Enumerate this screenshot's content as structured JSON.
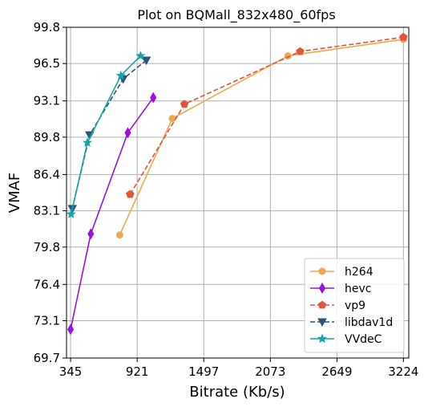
{
  "chart_data": {
    "type": "line",
    "title": "Plot on BQMall_832x480_60fps",
    "xlabel": "Bitrate (Kb/s)",
    "ylabel": "VMAF",
    "xlim": [
      310,
      3270
    ],
    "ylim": [
      69.7,
      99.8
    ],
    "xticks": [
      345,
      921,
      1497,
      2073,
      2649,
      3224
    ],
    "yticks": [
      69.7,
      73.1,
      76.4,
      79.8,
      83.1,
      86.4,
      89.8,
      93.1,
      96.5,
      99.8
    ],
    "xtick_labels": [
      "345",
      "921",
      "1497",
      "2073",
      "2649",
      "3224"
    ],
    "ytick_labels": [
      "69.7",
      "73.1",
      "76.4",
      "79.8",
      "83.1",
      "86.4",
      "89.8",
      "93.1",
      "96.5",
      "99.8"
    ],
    "grid": true,
    "legend_position": "lower-right",
    "series": [
      {
        "name": "h264",
        "color": "#f0a84e",
        "dash": "solid",
        "marker": "circle",
        "x": [
          770,
          1225,
          2225,
          3224
        ],
        "y": [
          80.9,
          91.5,
          97.2,
          98.7
        ]
      },
      {
        "name": "hevc",
        "color": "#9b11e0",
        "dash": "solid",
        "marker": "diamond",
        "x": [
          345,
          520,
          840,
          1060
        ],
        "y": [
          72.3,
          81.0,
          90.2,
          93.4
        ]
      },
      {
        "name": "vp9",
        "color": "#e0543a",
        "dash": "dashed",
        "marker": "pentagon",
        "x": [
          860,
          1330,
          2330,
          3224
        ],
        "y": [
          84.6,
          92.8,
          97.6,
          98.9
        ]
      },
      {
        "name": "libdav1d",
        "color": "#2d5577",
        "dash": "dashed",
        "marker": "triangle-down",
        "x": [
          360,
          510,
          800,
          1000
        ],
        "y": [
          83.3,
          90.0,
          95.1,
          96.8
        ]
      },
      {
        "name": "VVdeC",
        "color": "#17a3a9",
        "dash": "solid",
        "marker": "star",
        "x": [
          350,
          490,
          780,
          950
        ],
        "y": [
          82.8,
          89.3,
          95.4,
          97.2
        ]
      }
    ]
  }
}
